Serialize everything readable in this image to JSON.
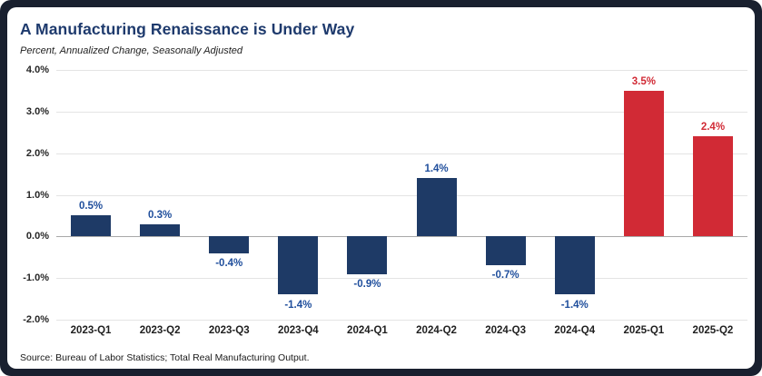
{
  "header": {
    "title": "A Manufacturing Renaissance is Under Way",
    "subtitle": "Percent, Annualized Change, Seasonally Adjusted"
  },
  "footer": {
    "source": "Source: Bureau of Labor Statistics; Total Real Manufacturing Output."
  },
  "colors": {
    "frame_bg": "#19202f",
    "card_bg": "#ffffff",
    "title_navy": "#1e3a6d",
    "bar_navy": "#1e3a66",
    "bar_red": "#d12a35",
    "label_blue": "#1f4e9c",
    "label_red": "#d12a35",
    "gridline": "#e4e4e4",
    "zero_line": "#a9a9a9",
    "tick_text": "#262626"
  },
  "chart_data": {
    "type": "bar",
    "title": "A Manufacturing Renaissance is Under Way",
    "subtitle": "Percent, Annualized Change, Seasonally Adjusted",
    "categories": [
      "2023-Q1",
      "2023-Q2",
      "2023-Q3",
      "2023-Q4",
      "2024-Q1",
      "2024-Q2",
      "2024-Q3",
      "2024-Q4",
      "2025-Q1",
      "2025-Q2"
    ],
    "values": [
      0.5,
      0.3,
      -0.4,
      -1.4,
      -0.9,
      1.4,
      -0.7,
      -1.4,
      3.5,
      2.4
    ],
    "value_labels": [
      "0.5%",
      "0.3%",
      "-0.4%",
      "-1.4%",
      "-0.9%",
      "1.4%",
      "-0.7%",
      "-1.4%",
      "3.5%",
      "2.4%"
    ],
    "bar_colors": [
      "navy",
      "navy",
      "navy",
      "navy",
      "navy",
      "navy",
      "navy",
      "navy",
      "red",
      "red"
    ],
    "xlabel": "",
    "ylabel": "",
    "ylim": [
      -2.0,
      4.0
    ],
    "yticks": [
      "4.0%",
      "3.0%",
      "2.0%",
      "1.0%",
      "0.0%",
      "-1.0%",
      "-2.0%"
    ],
    "ytick_values": [
      4,
      3,
      2,
      1,
      0,
      -1,
      -2
    ],
    "grid": "horizontal",
    "legend_position": "none",
    "source": "Source: Bureau of Labor Statistics; Total Real Manufacturing Output."
  }
}
